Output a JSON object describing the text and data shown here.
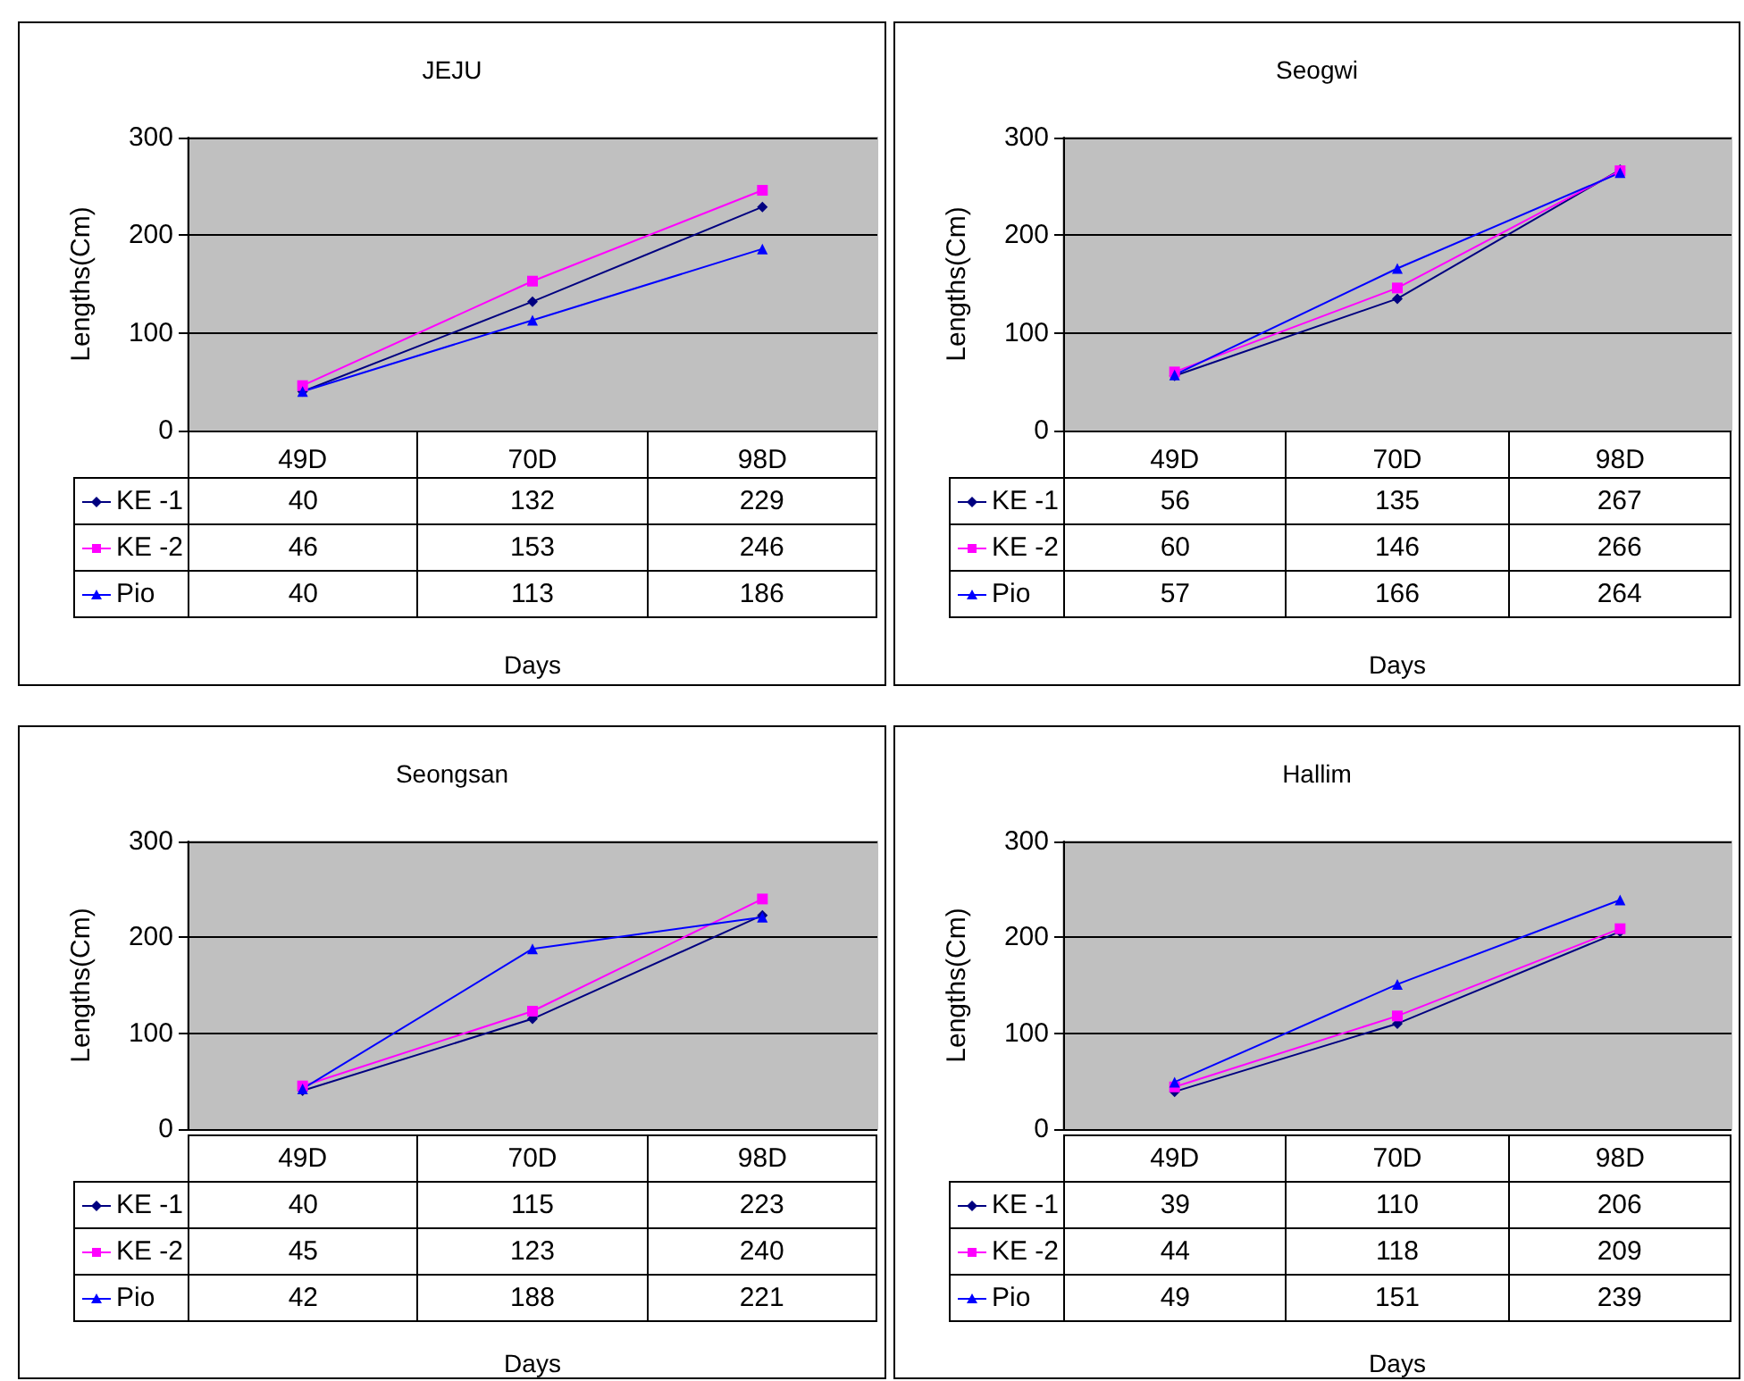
{
  "chart_data": [
    {
      "type": "line",
      "title": "JEJU",
      "xlabel": "Days",
      "ylabel": "Lengths(Cm)",
      "categories": [
        "49D",
        "70D",
        "98D"
      ],
      "ylim": [
        0,
        300
      ],
      "yticks": [
        0,
        100,
        200,
        300
      ],
      "grid": "y",
      "legend": "bottom",
      "data_labels": true,
      "series": [
        {
          "name": "KE -1",
          "color": "#000080",
          "marker": "diamond",
          "values": [
            40,
            132,
            229
          ]
        },
        {
          "name": "KE -2",
          "color": "#ff00ff",
          "marker": "square",
          "values": [
            46,
            153,
            246
          ]
        },
        {
          "name": "Pio",
          "color": "#0000ff",
          "marker": "triangle",
          "values": [
            40,
            113,
            186
          ]
        }
      ]
    },
    {
      "type": "line",
      "title": "Seogwi",
      "xlabel": "Days",
      "ylabel": "Lengths(Cm)",
      "categories": [
        "49D",
        "70D",
        "98D"
      ],
      "ylim": [
        0,
        300
      ],
      "yticks": [
        0,
        100,
        200,
        300
      ],
      "grid": "y",
      "legend": "bottom",
      "data_labels": true,
      "series": [
        {
          "name": "KE -1",
          "color": "#000080",
          "marker": "diamond",
          "values": [
            56,
            135,
            267
          ]
        },
        {
          "name": "KE -2",
          "color": "#ff00ff",
          "marker": "square",
          "values": [
            60,
            146,
            266
          ]
        },
        {
          "name": "Pio",
          "color": "#0000ff",
          "marker": "triangle",
          "values": [
            57,
            166,
            264
          ]
        }
      ]
    },
    {
      "type": "line",
      "title": "Seongsan",
      "xlabel": "Days",
      "ylabel": "Lengths(Cm)",
      "categories": [
        "49D",
        "70D",
        "98D"
      ],
      "ylim": [
        0,
        300
      ],
      "yticks": [
        0,
        100,
        200,
        300
      ],
      "grid": "y",
      "legend": "bottom",
      "data_labels": true,
      "series": [
        {
          "name": "KE -1",
          "color": "#000080",
          "marker": "diamond",
          "values": [
            40,
            115,
            223
          ]
        },
        {
          "name": "KE -2",
          "color": "#ff00ff",
          "marker": "square",
          "values": [
            45,
            123,
            240
          ]
        },
        {
          "name": "Pio",
          "color": "#0000ff",
          "marker": "triangle",
          "values": [
            42,
            188,
            221
          ]
        }
      ]
    },
    {
      "type": "line",
      "title": "Hallim",
      "xlabel": "Days",
      "ylabel": "Lengths(Cm)",
      "categories": [
        "49D",
        "70D",
        "98D"
      ],
      "ylim": [
        0,
        300
      ],
      "yticks": [
        0,
        100,
        200,
        300
      ],
      "grid": "y",
      "legend": "bottom",
      "data_labels": true,
      "series": [
        {
          "name": "KE -1",
          "color": "#000080",
          "marker": "diamond",
          "values": [
            39,
            110,
            206
          ]
        },
        {
          "name": "KE -2",
          "color": "#ff00ff",
          "marker": "square",
          "values": [
            44,
            118,
            209
          ]
        },
        {
          "name": "Pio",
          "color": "#0000ff",
          "marker": "triangle",
          "values": [
            49,
            151,
            239
          ]
        }
      ]
    }
  ]
}
